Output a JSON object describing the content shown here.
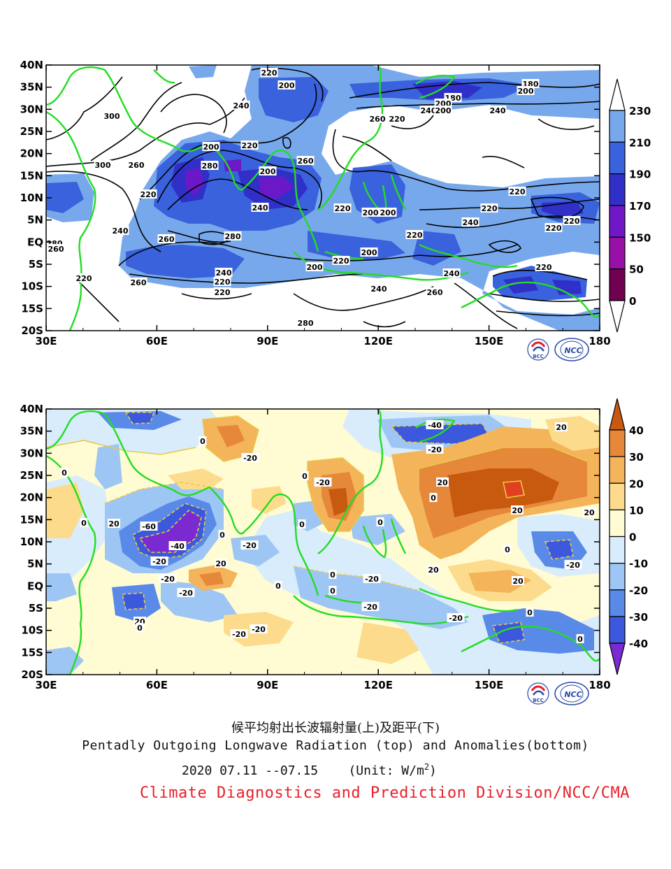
{
  "panels": [
    {
      "id": "top",
      "x_ticks": [
        "30E",
        "60E",
        "90E",
        "120E",
        "150E",
        "180"
      ],
      "y_ticks": [
        "40N",
        "35N",
        "30N",
        "25N",
        "20N",
        "15N",
        "10N",
        "5N",
        "EQ",
        "5S",
        "10S",
        "15S",
        "20S"
      ],
      "colorbar": {
        "labels": [
          "230",
          "210",
          "190",
          "170",
          "150",
          "50",
          "0"
        ],
        "colors": [
          "#ffffff",
          "#78a8ec",
          "#3a62dc",
          "#3030c8",
          "#7018c8",
          "#9810a8",
          "#700050",
          "#3a0030",
          "#ffffff"
        ]
      },
      "contour_labels": [
        "220",
        "200",
        "240",
        "180",
        "200",
        "300",
        "260",
        "300",
        "280",
        "240",
        "260",
        "220",
        "240",
        "200",
        "180",
        "200",
        "200",
        "220",
        "200",
        "260",
        "240",
        "280",
        "260",
        "220",
        "200",
        "200",
        "220",
        "240",
        "220",
        "200",
        "220",
        "220",
        "220",
        "220",
        "240",
        "280",
        "260",
        "220",
        "260",
        "240",
        "220",
        "220",
        "200",
        "220",
        "240",
        "260",
        "240",
        "280",
        "220"
      ]
    },
    {
      "id": "bottom",
      "x_ticks": [
        "30E",
        "60E",
        "90E",
        "120E",
        "150E",
        "180"
      ],
      "y_ticks": [
        "40N",
        "35N",
        "30N",
        "25N",
        "20N",
        "15N",
        "10N",
        "5N",
        "EQ",
        "5S",
        "10S",
        "15S",
        "20S"
      ],
      "colorbar": {
        "labels": [
          "40",
          "30",
          "20",
          "10",
          "0",
          "-10",
          "-20",
          "-30",
          "-40"
        ],
        "colors": [
          "#c85a10",
          "#e6883a",
          "#f4b45a",
          "#fcdc8c",
          "#fffcd4",
          "#d8ecfc",
          "#9ec6f4",
          "#5a8ae8",
          "#3c58dc",
          "#7a2ad0"
        ]
      },
      "contour_labels": [
        "0",
        "-40",
        "-20",
        "20",
        "0",
        "0",
        "-20",
        "-20",
        "20",
        "0",
        "20",
        "20",
        "-60",
        "-40",
        "-20",
        "-20",
        "0",
        "0",
        "-20",
        "20",
        "0",
        "0",
        "-20",
        "0",
        "20",
        "0",
        "20",
        "20",
        "-20",
        "-20",
        "0",
        "0",
        "-20",
        "-20",
        "0",
        "20",
        "0",
        "-20",
        "-20",
        "0"
      ]
    }
  ],
  "logos": [
    "BCC",
    "NCC"
  ],
  "captions": {
    "zh": "候平均射出长波辐射量(上)及距平(下)",
    "en": "Pentadly Outgoing Longwave Radiation (top) and Anomalies(bottom)",
    "date": "2020  07.11 --07.15",
    "unit_prefix": "(Unit: W/m",
    "unit_sup": "2",
    "unit_suffix": ")",
    "org": "Climate Diagnostics and Prediction Division/NCC/CMA"
  }
}
